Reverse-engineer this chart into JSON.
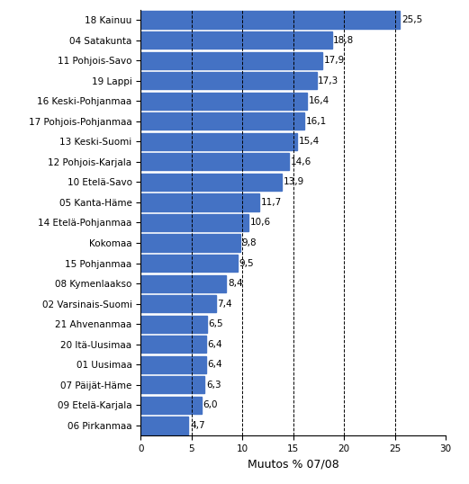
{
  "categories": [
    "06 Pirkanmaa",
    "09 Etelä-Karjala",
    "07 Päijät-Häme",
    "01 Uusimaa",
    "20 Itä-Uusimaa",
    "21 Ahvenanmaa",
    "02 Varsinais-Suomi",
    "08 Kymenlaakso",
    "15 Pohjanmaa",
    "Kokomaa",
    "14 Etelä-Pohjanmaa",
    "05 Kanta-Häme",
    "10 Etelä-Savo",
    "12 Pohjois-Karjala",
    "13 Keski-Suomi",
    "17 Pohjois-Pohjanmaa",
    "16 Keski-Pohjanmaa",
    "19 Lappi",
    "11 Pohjois-Savo",
    "04 Satakunta",
    "18 Kainuu"
  ],
  "values": [
    4.7,
    6.0,
    6.3,
    6.4,
    6.4,
    6.5,
    7.4,
    8.4,
    9.5,
    9.8,
    10.6,
    11.7,
    13.9,
    14.6,
    15.4,
    16.1,
    16.4,
    17.3,
    17.9,
    18.8,
    25.5
  ],
  "value_labels": [
    "4,7",
    "6,0",
    "6,3",
    "6,4",
    "6,4",
    "6,5",
    "7,4",
    "8,4",
    "9,5",
    "9,8",
    "10,6",
    "11,7",
    "13,9",
    "14,6",
    "15,4",
    "16,1",
    "16,4",
    "17,3",
    "17,9",
    "18,8",
    "25,5"
  ],
  "bar_color": "#4472C4",
  "xlabel": "Muutos % 07/08",
  "xlim": [
    0,
    30
  ],
  "xticks": [
    0,
    5,
    10,
    15,
    20,
    25,
    30
  ],
  "grid_color": "#000000",
  "background_color": "#ffffff",
  "label_fontsize": 7.5,
  "value_fontsize": 7.5,
  "xlabel_fontsize": 9,
  "bar_height": 0.85
}
